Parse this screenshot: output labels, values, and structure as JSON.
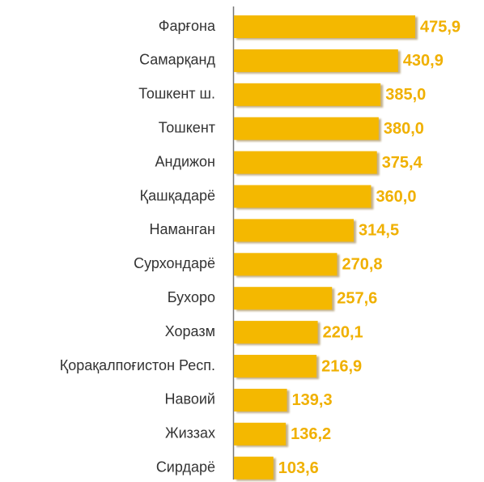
{
  "chart_data": {
    "type": "bar",
    "orientation": "horizontal",
    "categories": [
      "Фарғона",
      "Самарқанд",
      "Тошкент ш.",
      "Тошкент",
      "Андижон",
      "Қашқадарё",
      "Наманган",
      "Сурхондарё",
      "Бухоро",
      "Хоразм",
      "Қорақалпоғистон Респ.",
      "Навоий",
      "Жиззах",
      "Сирдарё"
    ],
    "values": [
      475.9,
      430.9,
      385.0,
      380.0,
      375.4,
      360.0,
      314.5,
      270.8,
      257.6,
      220.1,
      216.9,
      139.3,
      136.2,
      103.6
    ],
    "value_labels": [
      "475,9",
      "430,9",
      "385,0",
      "380,0",
      "375,4",
      "360,0",
      "314,5",
      "270,8",
      "257,6",
      "220,1",
      "216,9",
      "139,3",
      "136,2",
      "103,6"
    ],
    "color": "#f4b800",
    "label_color": "#f0b000"
  }
}
